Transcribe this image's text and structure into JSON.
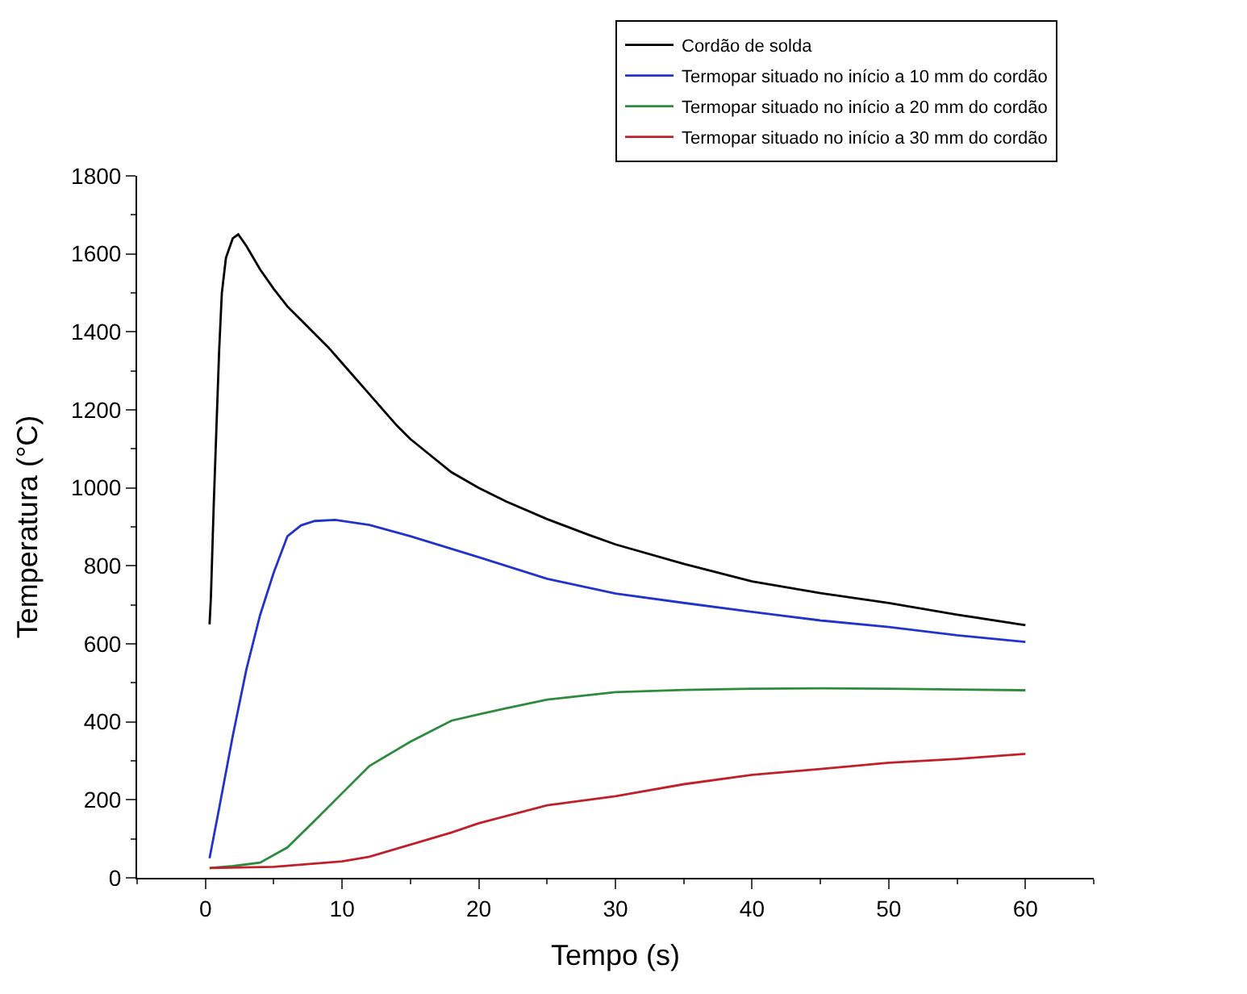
{
  "chart_data": {
    "type": "line",
    "xlabel": "Tempo (s)",
    "ylabel": "Temperatura (°C)",
    "xlim": [
      -5,
      65
    ],
    "xticks": [
      0,
      10,
      20,
      30,
      40,
      50,
      60
    ],
    "ylim": [
      0,
      1800
    ],
    "yticks": [
      0,
      200,
      400,
      600,
      800,
      1000,
      1200,
      1400,
      1600,
      1800
    ],
    "legend": "top right",
    "marker": "none",
    "line_style": "solid",
    "series": [
      {
        "name": "Cordão de solda",
        "color": "#000000",
        "x": [
          0.3,
          0.4,
          0.6,
          0.8,
          1.0,
          1.2,
          1.5,
          2.0,
          2.4,
          3,
          4,
          5,
          6,
          7,
          8,
          9,
          10,
          12,
          14,
          15,
          18,
          20,
          22,
          25,
          28,
          30,
          35,
          40,
          45,
          50,
          55,
          60
        ],
        "values": [
          650,
          720,
          950,
          1150,
          1350,
          1500,
          1590,
          1640,
          1650,
          1620,
          1560,
          1510,
          1465,
          1430,
          1395,
          1360,
          1320,
          1240,
          1160,
          1125,
          1040,
          1000,
          965,
          920,
          880,
          855,
          805,
          760,
          730,
          705,
          675,
          648
        ]
      },
      {
        "name": "Termopar situado no início a 10 mm do cordão",
        "color": "#2233cc",
        "x": [
          0.3,
          1,
          2,
          3,
          4,
          5,
          6,
          7,
          8,
          9.5,
          12,
          15,
          20,
          25,
          30,
          35,
          40,
          45,
          50,
          55,
          60
        ],
        "values": [
          50,
          178,
          364,
          535,
          674,
          783,
          876,
          904,
          915,
          918,
          905,
          876,
          822,
          767,
          729,
          705,
          682,
          660,
          643,
          622,
          605
        ]
      },
      {
        "name": "Termopar situado no início a 20 mm do cordão",
        "color": "#2e8b3e",
        "x": [
          0.3,
          2,
          4,
          6,
          8,
          10,
          12,
          15,
          18,
          20,
          22,
          25,
          30,
          35,
          40,
          45,
          50,
          55,
          60
        ],
        "values": [
          25,
          30,
          39,
          78,
          147,
          217,
          287,
          349,
          403,
          419,
          435,
          457,
          476,
          482,
          485,
          486,
          485,
          483,
          481
        ]
      },
      {
        "name": "Termopar situado no início a 30 mm do cordão",
        "color": "#c0202a",
        "x": [
          0.3,
          5,
          10,
          12,
          15,
          18,
          20,
          25,
          30,
          35,
          40,
          45,
          50,
          55,
          60
        ],
        "values": [
          25,
          28,
          42,
          54,
          85,
          116,
          140,
          186,
          209,
          240,
          264,
          279,
          295,
          305,
          318
        ]
      }
    ]
  }
}
